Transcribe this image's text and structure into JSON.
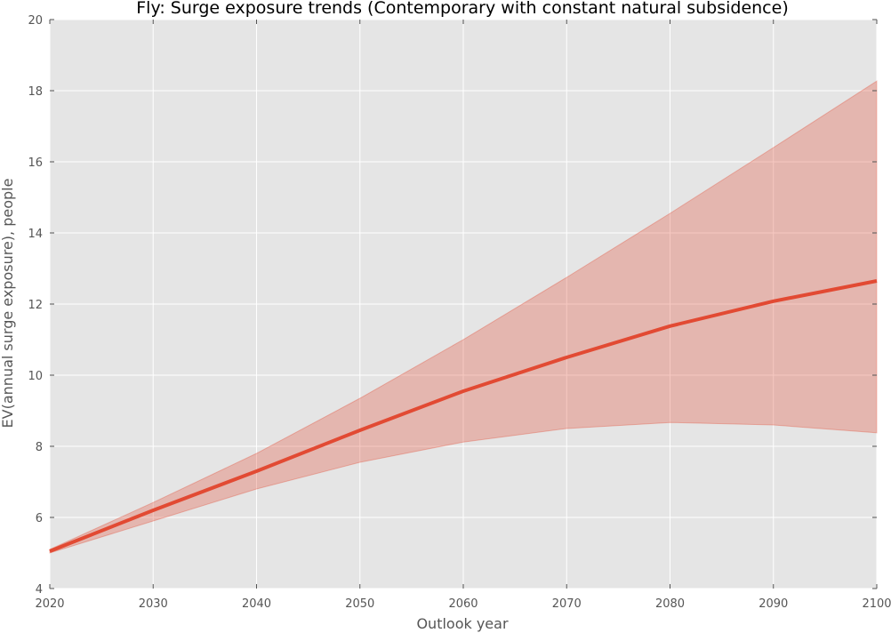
{
  "chart_data": {
    "type": "line",
    "title": "Fly: Surge exposure trends (Contemporary with constant natural subsidence)",
    "xlabel": "Outlook year",
    "ylabel": "EV(annual surge exposure), people",
    "xlim": [
      2020,
      2100
    ],
    "ylim": [
      4,
      20
    ],
    "xticks": [
      "2020",
      "2030",
      "2040",
      "2050",
      "2060",
      "2070",
      "2080",
      "2090",
      "2100"
    ],
    "yticks": [
      "4",
      "6",
      "8",
      "10",
      "12",
      "14",
      "16",
      "18",
      "20"
    ],
    "grid": true,
    "legend": "none",
    "x": [
      2020,
      2030,
      2040,
      2050,
      2060,
      2070,
      2080,
      2090,
      2100
    ],
    "series": [
      {
        "values": [
          5.05,
          6.2,
          7.3,
          8.45,
          9.55,
          10.5,
          11.38,
          12.08,
          12.65
        ],
        "lower": [
          5.0,
          5.9,
          6.8,
          7.55,
          8.12,
          8.5,
          8.67,
          8.6,
          8.38
        ],
        "upper": [
          5.1,
          6.42,
          7.8,
          9.35,
          11.0,
          12.75,
          14.55,
          16.4,
          18.27
        ],
        "color": "#e24a33",
        "band_color": "#e24a33"
      }
    ],
    "colors": {
      "plot_background": "#e5e5e5",
      "grid": "#ffffff"
    }
  }
}
